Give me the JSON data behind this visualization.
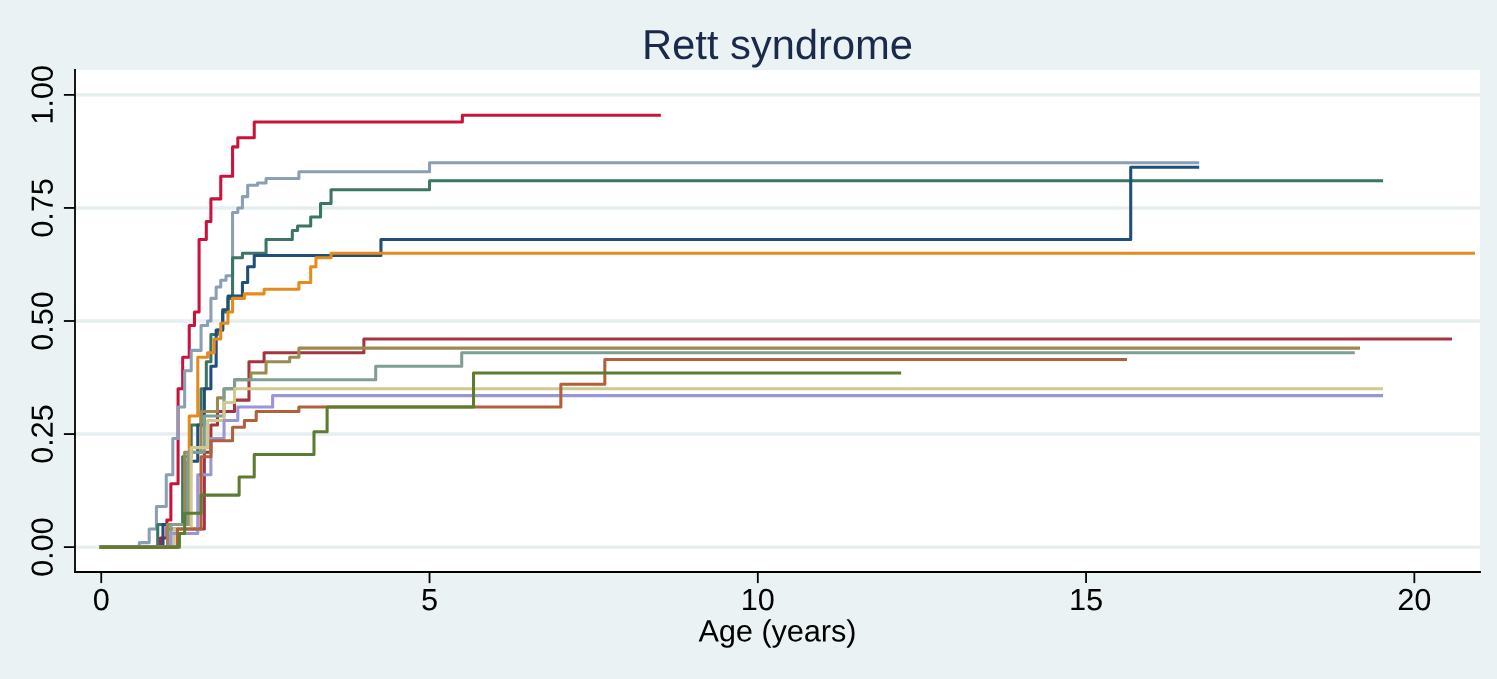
{
  "chart_data": {
    "type": "step",
    "title": "Rett syndrome",
    "xlabel": "Age (years)",
    "xlim": [
      -0.4,
      21
    ],
    "ylim": [
      -0.055,
      1.055
    ],
    "xticks": [
      0,
      5,
      10,
      15,
      20
    ],
    "yticks": [
      {
        "value": 0,
        "label": "0.00"
      },
      {
        "value": 0.25,
        "label": "0.25"
      },
      {
        "value": 0.5,
        "label": "0.50"
      },
      {
        "value": 0.75,
        "label": "0.75"
      },
      {
        "value": 1,
        "label": "1.00"
      }
    ],
    "grid": "y",
    "legend": false,
    "line_style": "solid",
    "marker": "none",
    "series": [
      {
        "color": "#c8143c",
        "x": [
          0,
          0.9,
          1.0,
          1.06,
          1.17,
          1.24,
          1.34,
          1.42,
          1.49,
          1.6,
          1.67,
          1.82,
          2.0,
          2.08,
          2.33,
          5.5,
          8.5
        ],
        "values": [
          0,
          0.02,
          0.06,
          0.14,
          0.35,
          0.42,
          0.49,
          0.52,
          0.68,
          0.72,
          0.77,
          0.82,
          0.885,
          0.905,
          0.94,
          0.955,
          0.955
        ]
      },
      {
        "color": "#8a9fb5",
        "x": [
          0,
          0.58,
          0.73,
          0.84,
          0.99,
          1.09,
          1.17,
          1.27,
          1.37,
          1.52,
          1.62,
          1.67,
          1.75,
          1.82,
          1.9,
          2.0,
          2.08,
          2.15,
          2.23,
          2.38,
          2.51,
          3.01,
          5.0,
          16.7
        ],
        "values": [
          0,
          0.01,
          0.04,
          0.09,
          0.16,
          0.24,
          0.31,
          0.39,
          0.435,
          0.49,
          0.5,
          0.55,
          0.575,
          0.59,
          0.6,
          0.74,
          0.75,
          0.775,
          0.8,
          0.805,
          0.815,
          0.83,
          0.85,
          0.85
        ]
      },
      {
        "color": "#3b7564",
        "x": [
          0,
          0.86,
          1.24,
          1.37,
          1.52,
          1.6,
          1.67,
          1.77,
          1.85,
          1.93,
          2.0,
          2.15,
          2.51,
          2.91,
          2.99,
          3.19,
          3.34,
          3.5,
          5.0,
          19.5
        ],
        "values": [
          0,
          0.05,
          0.2,
          0.27,
          0.35,
          0.41,
          0.47,
          0.48,
          0.52,
          0.55,
          0.64,
          0.65,
          0.68,
          0.7,
          0.71,
          0.73,
          0.76,
          0.79,
          0.81,
          0.81
        ]
      },
      {
        "color": "#1f4e79",
        "x": [
          0,
          0.94,
          1.32,
          1.47,
          1.57,
          1.67,
          1.75,
          1.85,
          1.93,
          2.15,
          2.23,
          2.33,
          4.26,
          15.68,
          16.7
        ],
        "values": [
          0,
          0.05,
          0.19,
          0.27,
          0.35,
          0.4,
          0.48,
          0.525,
          0.555,
          0.585,
          0.62,
          0.645,
          0.68,
          0.84,
          0.84
        ]
      },
      {
        "color": "#e8891c",
        "x": [
          0,
          1.01,
          1.34,
          1.47,
          1.62,
          1.72,
          1.82,
          1.93,
          2.0,
          2.18,
          2.48,
          3.01,
          3.19,
          3.27,
          3.5,
          20.9
        ],
        "values": [
          0,
          0.05,
          0.29,
          0.42,
          0.43,
          0.46,
          0.495,
          0.52,
          0.55,
          0.56,
          0.57,
          0.585,
          0.62,
          0.64,
          0.65,
          0.65
        ]
      },
      {
        "color": "#a6343f",
        "x": [
          0,
          1.01,
          1.57,
          1.67,
          1.77,
          2.03,
          2.25,
          2.48,
          4.0,
          20.55
        ],
        "values": [
          0,
          0.04,
          0.21,
          0.27,
          0.3,
          0.325,
          0.41,
          0.43,
          0.46,
          0.46
        ]
      },
      {
        "color": "#9a8a50",
        "x": [
          0,
          1.01,
          1.27,
          1.52,
          1.77,
          1.87,
          2.03,
          2.28,
          2.51,
          2.87,
          3.01,
          19.15
        ],
        "values": [
          0,
          0.05,
          0.21,
          0.3,
          0.33,
          0.35,
          0.37,
          0.385,
          0.41,
          0.42,
          0.44,
          0.44
        ]
      },
      {
        "color": "#7f9f92",
        "x": [
          0,
          1.06,
          1.32,
          1.57,
          1.87,
          2.03,
          4.18,
          5.49,
          19.07
        ],
        "values": [
          0,
          0.05,
          0.21,
          0.29,
          0.35,
          0.37,
          0.4,
          0.43,
          0.43
        ]
      },
      {
        "color": "#cfc98f",
        "x": [
          0,
          1.11,
          1.37,
          1.62,
          1.87,
          2.03,
          19.5
        ],
        "values": [
          0,
          0.04,
          0.22,
          0.28,
          0.32,
          0.35,
          0.35
        ]
      },
      {
        "color": "#9a94d8",
        "x": [
          0,
          1.06,
          1.47,
          1.67,
          1.87,
          2.08,
          2.61,
          19.5
        ],
        "values": [
          0,
          0.03,
          0.16,
          0.24,
          0.28,
          0.31,
          0.335,
          0.335
        ]
      },
      {
        "color": "#b0603a",
        "x": [
          0,
          1.16,
          1.52,
          1.67,
          2.0,
          2.18,
          2.36,
          3.01,
          7.0,
          7.67,
          15.6
        ],
        "values": [
          0,
          0.04,
          0.2,
          0.235,
          0.265,
          0.28,
          0.3,
          0.31,
          0.36,
          0.415,
          0.415
        ]
      },
      {
        "color": "#5c7c30",
        "x": [
          0,
          1.19,
          1.27,
          1.52,
          2.1,
          2.33,
          3.24,
          3.44,
          5.67,
          12.16
        ],
        "values": [
          0,
          0.03,
          0.075,
          0.115,
          0.155,
          0.205,
          0.255,
          0.31,
          0.385,
          0.385
        ]
      }
    ]
  }
}
